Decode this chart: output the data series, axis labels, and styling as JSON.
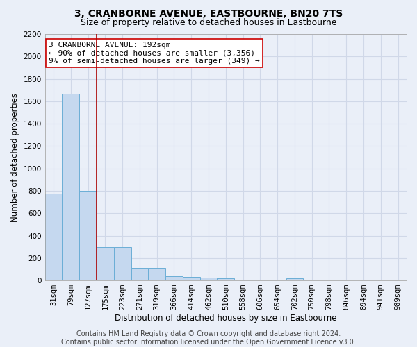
{
  "title": "3, CRANBORNE AVENUE, EASTBOURNE, BN20 7TS",
  "subtitle": "Size of property relative to detached houses in Eastbourne",
  "xlabel": "Distribution of detached houses by size in Eastbourne",
  "ylabel": "Number of detached properties",
  "categories": [
    "31sqm",
    "79sqm",
    "127sqm",
    "175sqm",
    "223sqm",
    "271sqm",
    "319sqm",
    "366sqm",
    "414sqm",
    "462sqm",
    "510sqm",
    "558sqm",
    "606sqm",
    "654sqm",
    "702sqm",
    "750sqm",
    "798sqm",
    "846sqm",
    "894sqm",
    "941sqm",
    "989sqm"
  ],
  "values": [
    775,
    1670,
    800,
    300,
    300,
    110,
    110,
    40,
    30,
    25,
    20,
    0,
    0,
    0,
    20,
    0,
    0,
    0,
    0,
    0,
    0
  ],
  "bar_color": "#c5d8ef",
  "bar_edge_color": "#6baed6",
  "background_color": "#eaeff8",
  "grid_color": "#d0d8e8",
  "red_line_x": 2.5,
  "annotation_text": "3 CRANBORNE AVENUE: 192sqm\n← 90% of detached houses are smaller (3,356)\n9% of semi-detached houses are larger (349) →",
  "annotation_box_color": "#ffffff",
  "annotation_border_color": "#cc0000",
  "red_line_color": "#aa0000",
  "ylim": [
    0,
    2200
  ],
  "yticks": [
    0,
    200,
    400,
    600,
    800,
    1000,
    1200,
    1400,
    1600,
    1800,
    2000,
    2200
  ],
  "footer_text": "Contains HM Land Registry data © Crown copyright and database right 2024.\nContains public sector information licensed under the Open Government Licence v3.0.",
  "title_fontsize": 10,
  "subtitle_fontsize": 9,
  "axis_label_fontsize": 8.5,
  "tick_fontsize": 7.5,
  "annotation_fontsize": 8,
  "footer_fontsize": 7
}
